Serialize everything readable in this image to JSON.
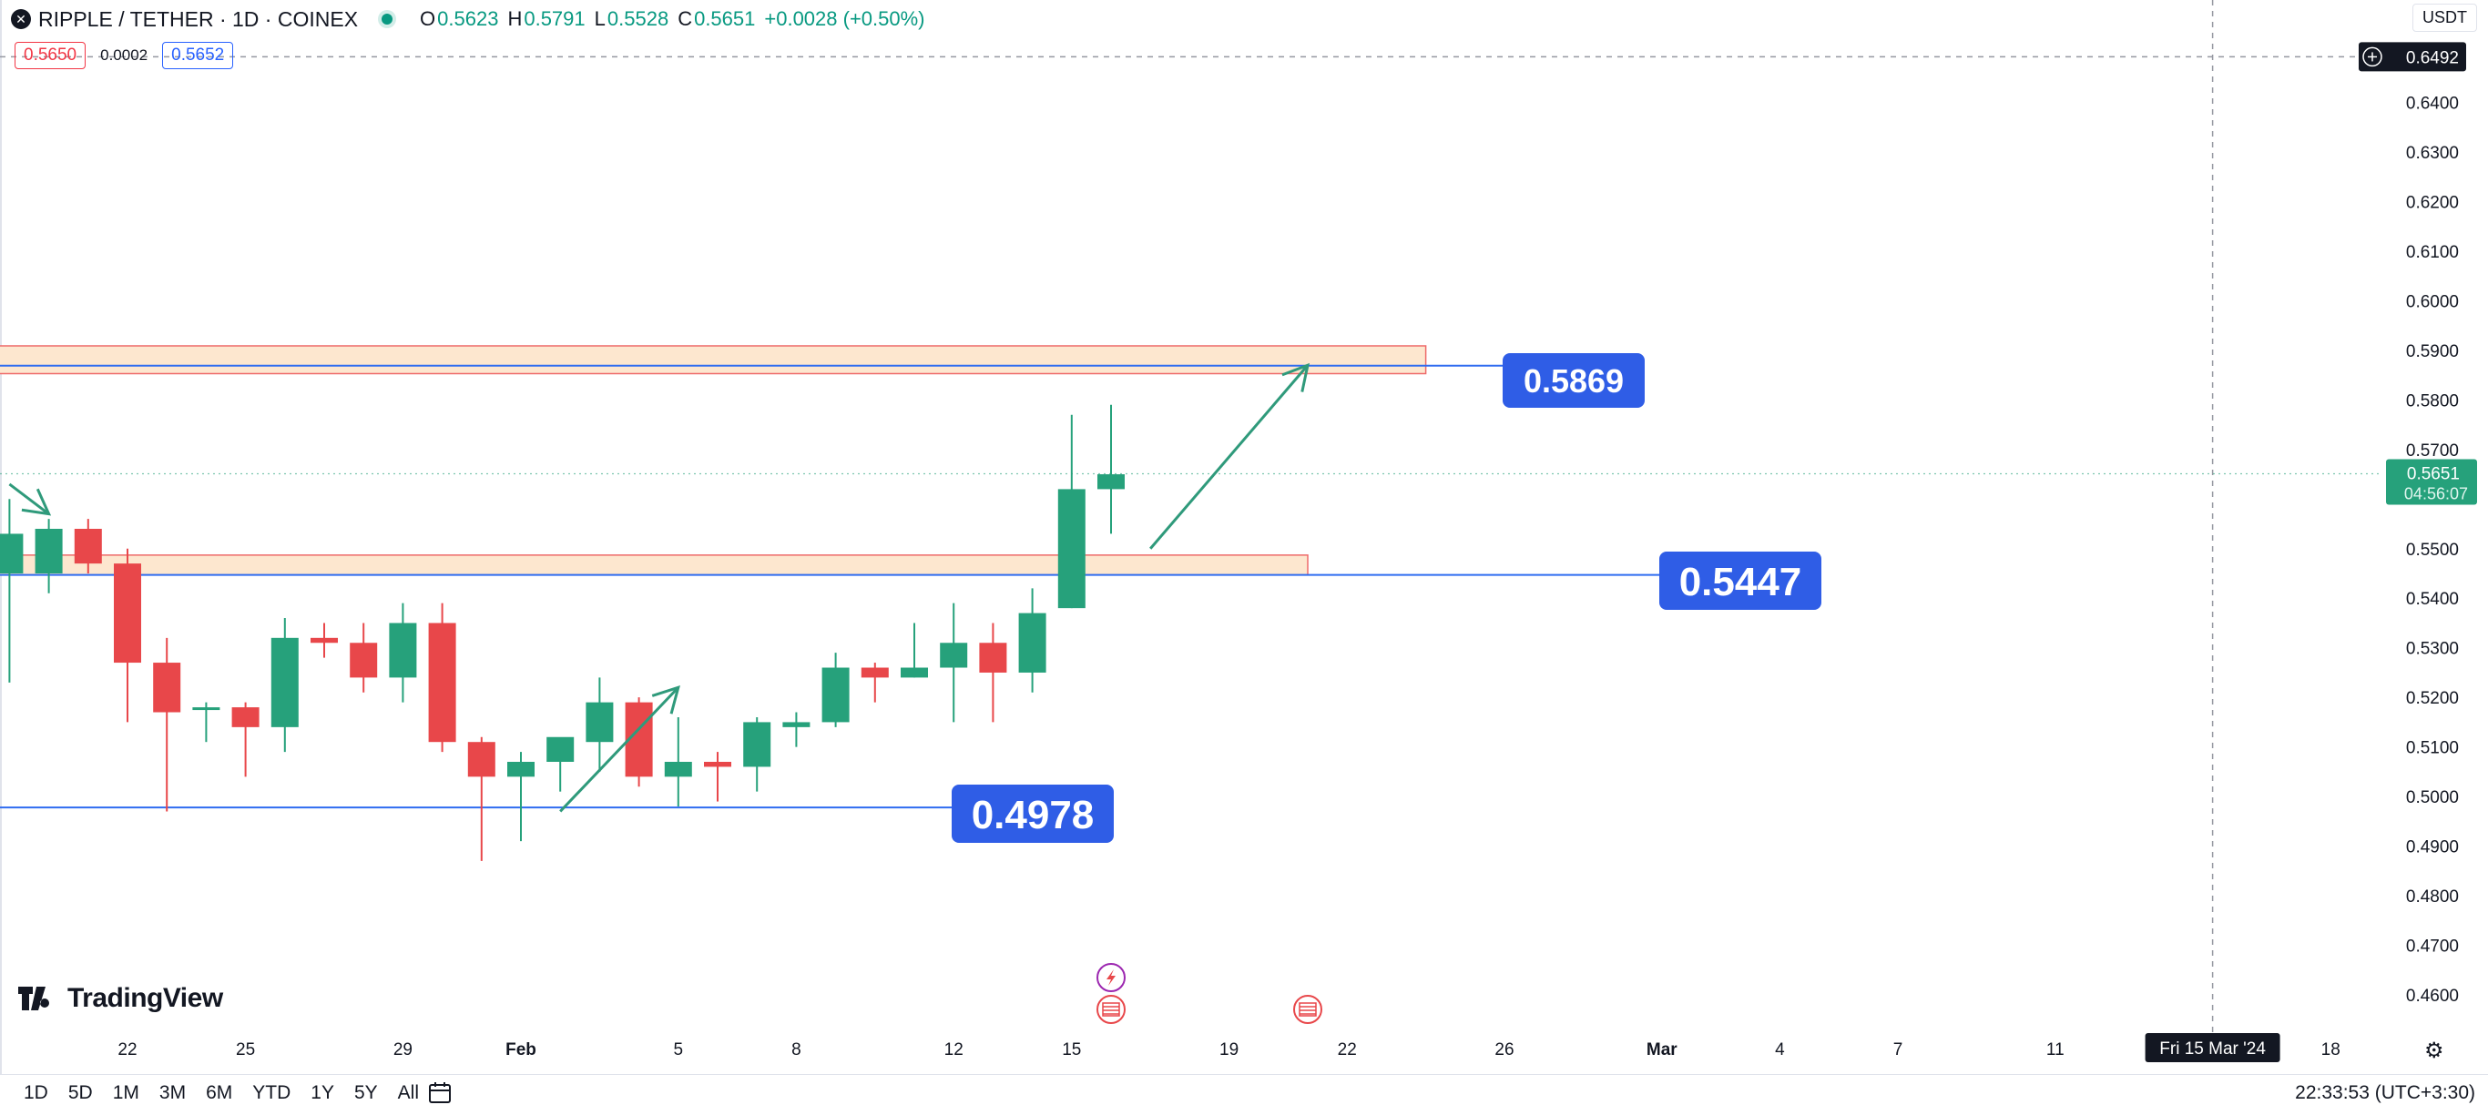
{
  "header": {
    "symbol": "RIPPLE / TETHER · 1D · COINEX",
    "ohlc": [
      {
        "k": "O",
        "v": "0.5623"
      },
      {
        "k": "H",
        "v": "0.5791"
      },
      {
        "k": "L",
        "v": "0.5528"
      },
      {
        "k": "C",
        "v": "0.5651"
      }
    ],
    "change": "+0.0028 (+0.50%)",
    "sell_price": "0.5650",
    "spread": "0.0002",
    "buy_price": "0.5652",
    "currency": "USDT"
  },
  "bottom_bar": {
    "ranges": [
      "1D",
      "5D",
      "1M",
      "3M",
      "6M",
      "YTD",
      "1Y",
      "5Y",
      "All"
    ],
    "clock": "22:33:53 (UTC+3:30)"
  },
  "brand": "TradingView",
  "colors": {
    "up": "#26a17b",
    "down": "#e8474a",
    "line": "#2f6cf0",
    "label": "#2f5de6",
    "zone": "#fde7cf",
    "zone_border": "#ee6a6a",
    "arrow": "#2f9a7b"
  },
  "chart_data": {
    "type": "candlestick",
    "title": "RIPPLE / TETHER · 1D · COINEX",
    "ylim": [
      0.455,
      0.6525
    ],
    "y_ticks": [
      "0.6400",
      "0.6300",
      "0.6200",
      "0.6100",
      "0.6000",
      "0.5900",
      "0.5800",
      "0.5700",
      "0.5500",
      "0.5400",
      "0.5300",
      "0.5200",
      "0.5100",
      "0.5000",
      "0.4900",
      "0.4800",
      "0.4700",
      "0.4600"
    ],
    "x_ticks": [
      "22",
      "25",
      "29",
      "Feb",
      "5",
      "8",
      "12",
      "15",
      "19",
      "22",
      "26",
      "Mar",
      "4",
      "7",
      "11",
      "18"
    ],
    "crosshair_x_label": "Fri 15 Mar '24",
    "crosshair_y_label": "0.6492",
    "last_price_label": "0.5651",
    "countdown": "04:56:07",
    "candles": [
      {
        "date": "2024-01-19",
        "o": 0.545,
        "h": 0.56,
        "l": 0.523,
        "c": 0.553
      },
      {
        "date": "2024-01-20",
        "o": 0.545,
        "h": 0.556,
        "l": 0.541,
        "c": 0.554
      },
      {
        "date": "2024-01-21",
        "o": 0.554,
        "h": 0.556,
        "l": 0.545,
        "c": 0.547
      },
      {
        "date": "2024-01-22",
        "o": 0.547,
        "h": 0.55,
        "l": 0.515,
        "c": 0.527
      },
      {
        "date": "2024-01-23",
        "o": 0.527,
        "h": 0.532,
        "l": 0.497,
        "c": 0.517
      },
      {
        "date": "2024-01-24",
        "o": 0.518,
        "h": 0.519,
        "l": 0.511,
        "c": 0.518
      },
      {
        "date": "2024-01-25",
        "o": 0.518,
        "h": 0.519,
        "l": 0.504,
        "c": 0.514
      },
      {
        "date": "2024-01-26",
        "o": 0.514,
        "h": 0.536,
        "l": 0.509,
        "c": 0.532
      },
      {
        "date": "2024-01-27",
        "o": 0.532,
        "h": 0.535,
        "l": 0.528,
        "c": 0.531
      },
      {
        "date": "2024-01-28",
        "o": 0.531,
        "h": 0.535,
        "l": 0.521,
        "c": 0.524
      },
      {
        "date": "2024-01-29",
        "o": 0.524,
        "h": 0.539,
        "l": 0.519,
        "c": 0.535
      },
      {
        "date": "2024-01-30",
        "o": 0.535,
        "h": 0.539,
        "l": 0.509,
        "c": 0.511
      },
      {
        "date": "2024-01-31",
        "o": 0.511,
        "h": 0.512,
        "l": 0.487,
        "c": 0.504
      },
      {
        "date": "2024-02-01",
        "o": 0.504,
        "h": 0.509,
        "l": 0.491,
        "c": 0.507
      },
      {
        "date": "2024-02-02",
        "o": 0.507,
        "h": 0.511,
        "l": 0.501,
        "c": 0.512
      },
      {
        "date": "2024-02-03",
        "o": 0.511,
        "h": 0.524,
        "l": 0.505,
        "c": 0.519
      },
      {
        "date": "2024-02-04",
        "o": 0.519,
        "h": 0.52,
        "l": 0.502,
        "c": 0.504
      },
      {
        "date": "2024-02-05",
        "o": 0.504,
        "h": 0.516,
        "l": 0.498,
        "c": 0.507
      },
      {
        "date": "2024-02-06",
        "o": 0.507,
        "h": 0.509,
        "l": 0.499,
        "c": 0.506
      },
      {
        "date": "2024-02-07",
        "o": 0.506,
        "h": 0.516,
        "l": 0.501,
        "c": 0.515
      },
      {
        "date": "2024-02-08",
        "o": 0.514,
        "h": 0.517,
        "l": 0.51,
        "c": 0.515
      },
      {
        "date": "2024-02-09",
        "o": 0.515,
        "h": 0.529,
        "l": 0.514,
        "c": 0.526
      },
      {
        "date": "2024-02-10",
        "o": 0.526,
        "h": 0.527,
        "l": 0.519,
        "c": 0.524
      },
      {
        "date": "2024-02-11",
        "o": 0.524,
        "h": 0.535,
        "l": 0.524,
        "c": 0.526
      },
      {
        "date": "2024-02-12",
        "o": 0.526,
        "h": 0.539,
        "l": 0.515,
        "c": 0.531
      },
      {
        "date": "2024-02-13",
        "o": 0.531,
        "h": 0.535,
        "l": 0.515,
        "c": 0.525
      },
      {
        "date": "2024-02-14",
        "o": 0.525,
        "h": 0.542,
        "l": 0.521,
        "c": 0.537
      },
      {
        "date": "2024-02-15",
        "o": 0.538,
        "h": 0.577,
        "l": 0.538,
        "c": 0.562
      },
      {
        "date": "2024-02-16",
        "o": 0.562,
        "h": 0.579,
        "l": 0.553,
        "c": 0.565
      }
    ],
    "lines": [
      {
        "value": 0.5869,
        "label": "0.5869"
      },
      {
        "value": 0.5447,
        "label": "0.5447"
      },
      {
        "value": 0.4978,
        "label": "0.4978"
      }
    ],
    "zones": [
      {
        "from_date": "2024-01-18",
        "to_date": "2024-02-24",
        "low": 0.5853,
        "high": 0.5909
      },
      {
        "from_date": "2024-01-18",
        "to_date": "2024-02-21",
        "low": 0.5447,
        "high": 0.5487
      }
    ],
    "arrows": [
      {
        "from": [
          "2024-02-17",
          0.55
        ],
        "to": [
          "2024-02-21",
          0.587
        ]
      },
      {
        "from": [
          "2024-02-02",
          0.497
        ],
        "to": [
          "2024-02-05",
          0.522
        ]
      },
      {
        "from": [
          "2024-01-19",
          0.563
        ],
        "to": [
          "2024-01-20",
          0.557
        ]
      }
    ]
  }
}
